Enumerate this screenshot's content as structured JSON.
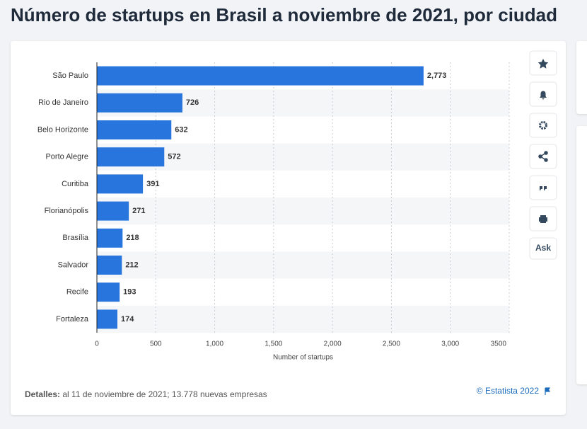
{
  "chart_data": {
    "type": "hbar",
    "title": "Número de startups en Brasil a noviembre de 2021, por ciudad",
    "categories": [
      "São Paulo",
      "Rio de Janeiro",
      "Belo Horizonte",
      "Porto Alegre",
      "Curitiba",
      "Florianópolis",
      "Brasília",
      "Salvador",
      "Recife",
      "Fortaleza"
    ],
    "values": [
      2773,
      726,
      632,
      572,
      391,
      271,
      218,
      212,
      193,
      174
    ],
    "value_labels": [
      "2,773",
      "726",
      "632",
      "572",
      "391",
      "271",
      "218",
      "212",
      "193",
      "174"
    ],
    "color": "#2876dd",
    "xlabel": "Number of startups",
    "xlim": [
      0,
      3500
    ],
    "xticks": [
      0,
      500,
      {
        "value": 1000,
        "label": "1,000"
      },
      {
        "value": 1500,
        "label": "1,500"
      },
      {
        "value": 2000,
        "label": "2,000"
      },
      {
        "value": 2500,
        "label": "2,500"
      },
      {
        "value": 3000,
        "label": "3,000"
      },
      3500
    ],
    "grid": true
  },
  "footer": {
    "details_label": "Detalles:",
    "details_text": "al 11 de noviembre de 2021; 13.778 nuevas empresas",
    "source": "© Estatista 2022"
  },
  "toolbar": {
    "ask": "Ask"
  }
}
